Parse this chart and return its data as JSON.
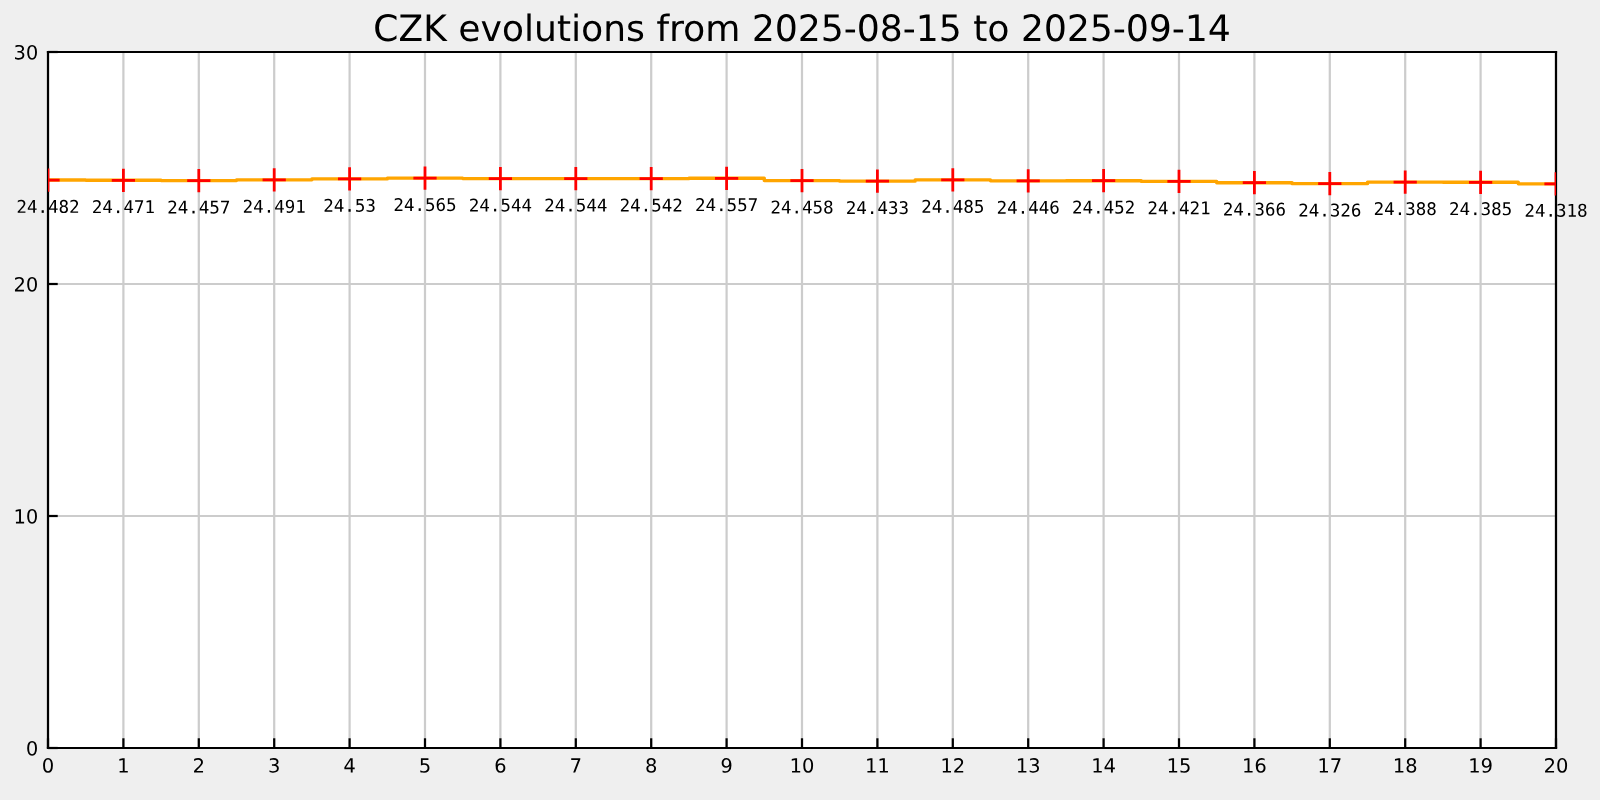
{
  "chart_data": {
    "type": "step",
    "title": "CZK evolutions from 2025-08-15 to 2025-09-14",
    "x": [
      0,
      1,
      2,
      3,
      4,
      5,
      6,
      7,
      8,
      9,
      10,
      11,
      12,
      13,
      14,
      15,
      16,
      17,
      18,
      19,
      20
    ],
    "series": [
      {
        "color": "#ffa500",
        "colors": [
          "#ff0000",
          "#ff0000",
          "#ff0000",
          "#ff0000",
          "#ff0000",
          "#ff0000",
          "#ff0000",
          "#ff0000",
          "#ff0000",
          "#ff0000",
          "#ff0000",
          "#ff0000",
          "#ff0000",
          "#ff0000",
          "#ff0000",
          "#ff0000",
          "#ff0000",
          "#ff0000",
          "#ff0000",
          "#ff0000",
          "#ff0000"
        ],
        "values": [
          24.482,
          24.471,
          24.457,
          24.491,
          24.53,
          24.565,
          24.544,
          24.544,
          24.542,
          24.557,
          24.458,
          24.433,
          24.485,
          24.446,
          24.452,
          24.421,
          24.366,
          24.326,
          24.388,
          24.385,
          24.318
        ]
      }
    ],
    "data_labels": true,
    "marker": "cross",
    "grid": true,
    "xlim": [
      0,
      20
    ],
    "xticks": [
      0,
      1,
      2,
      3,
      4,
      5,
      6,
      7,
      8,
      9,
      10,
      11,
      12,
      13,
      14,
      15,
      16,
      17,
      18,
      19,
      20
    ],
    "ylim": [
      0,
      30
    ],
    "yticks": [
      0,
      10,
      20,
      30
    ]
  }
}
